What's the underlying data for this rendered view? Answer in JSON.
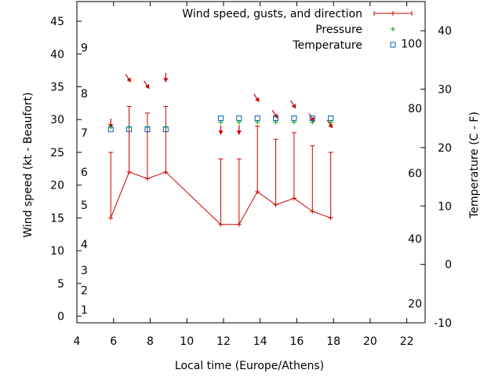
{
  "chart_data": {
    "type": "line",
    "xlabel": "Local time (Europe/Athens)",
    "ylabel": "Wind speed (kt - Beaufort)",
    "y2label": "Temperature (C - F)",
    "xlim": [
      4,
      23
    ],
    "ylim": [
      -1,
      48
    ],
    "y2lim": [
      -10,
      45
    ],
    "x_ticks": [
      4,
      6,
      8,
      10,
      12,
      14,
      16,
      18,
      20,
      22
    ],
    "y_ticks": [
      0,
      5,
      10,
      15,
      20,
      25,
      30,
      35,
      40,
      45
    ],
    "y2_ticks": [
      -10,
      0,
      10,
      20,
      30,
      40
    ],
    "beaufort_labels": [
      {
        "label": "1",
        "y": 1
      },
      {
        "label": "2",
        "y": 4
      },
      {
        "label": "3",
        "y": 7
      },
      {
        "label": "4",
        "y": 11
      },
      {
        "label": "5",
        "y": 17
      },
      {
        "label": "6",
        "y": 22
      },
      {
        "label": "7",
        "y": 28
      },
      {
        "label": "8",
        "y": 34
      },
      {
        "label": "9",
        "y": 41
      }
    ],
    "fahrenheit_labels": [
      {
        "label": "20",
        "y2": -6.7
      },
      {
        "label": "40",
        "y2": 4.4
      },
      {
        "label": "60",
        "y2": 15.6
      },
      {
        "label": "80",
        "y2": 26.7
      },
      {
        "label": "100",
        "y2": 37.8
      }
    ],
    "legend": [
      {
        "label": "Wind speed, gusts, and direction",
        "symbol": "errorbar"
      },
      {
        "label": "Pressure",
        "symbol": "plus"
      },
      {
        "label": "Temperature",
        "symbol": "square"
      }
    ],
    "legend_position": "top-right",
    "series": [
      {
        "name": "Wind speed, gusts, and direction",
        "color": "#cc0000",
        "x": [
          5.85,
          6.85,
          7.85,
          8.85,
          11.85,
          12.85,
          13.85,
          14.85,
          15.85,
          16.85,
          17.85
        ],
        "speed": [
          15,
          22,
          21,
          22,
          14,
          14,
          19,
          17,
          18,
          16,
          15
        ],
        "gust": [
          25,
          32,
          31,
          32,
          24,
          24,
          29,
          27,
          28,
          26,
          25
        ],
        "arrow_y": [
          28.7,
          35.7,
          34.7,
          35.7,
          27.7,
          27.7,
          32.7,
          30.2,
          31.7,
          29.7,
          28.7
        ],
        "arrow_direction": [
          "S",
          "SSE",
          "SSE",
          "S",
          "S",
          "S",
          "SSE",
          "SSE",
          "SSE",
          "SSE",
          "SSE"
        ]
      },
      {
        "name": "Pressure",
        "color": "#00a000",
        "x": [
          5.85,
          6.85,
          7.85,
          8.85,
          11.85,
          12.85,
          13.85,
          14.85,
          15.85,
          16.85,
          17.85
        ],
        "y": [
          28.9,
          28.9,
          28.9,
          28.9,
          29.6,
          29.6,
          29.6,
          29.6,
          29.6,
          29.6,
          29.6
        ]
      },
      {
        "name": "Temperature",
        "color": "#0060ad",
        "x": [
          5.85,
          6.85,
          7.85,
          8.85,
          11.85,
          12.85,
          13.85,
          14.85,
          15.85,
          16.85,
          17.85
        ],
        "y": [
          28.5,
          28.5,
          28.5,
          28.5,
          30.2,
          30.2,
          30.2,
          30.2,
          30.2,
          30.2,
          30.2
        ]
      }
    ]
  }
}
